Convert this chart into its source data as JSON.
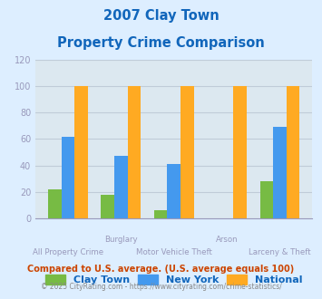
{
  "title_line1": "2007 Clay Town",
  "title_line2": "Property Crime Comparison",
  "categories": [
    "All Property Crime",
    "Burglary",
    "Motor Vehicle Theft",
    "Arson",
    "Larceny & Theft"
  ],
  "x_label_row1": [
    "",
    "Burglary",
    "",
    "Arson",
    ""
  ],
  "x_label_row2": [
    "All Property Crime",
    "",
    "Motor Vehicle Theft",
    "",
    "Larceny & Theft"
  ],
  "clay_town": [
    22,
    18,
    6,
    0,
    28
  ],
  "new_york": [
    62,
    47,
    41,
    0,
    69
  ],
  "national": [
    100,
    100,
    100,
    100,
    100
  ],
  "bar_colors": {
    "clay_town": "#77bb44",
    "new_york": "#4499ee",
    "national": "#ffaa22"
  },
  "ylim": [
    0,
    120
  ],
  "yticks": [
    0,
    20,
    40,
    60,
    80,
    100,
    120
  ],
  "legend_labels": [
    "Clay Town",
    "New York",
    "National"
  ],
  "footnote1": "Compared to U.S. average. (U.S. average equals 100)",
  "footnote2": "© 2025 CityRating.com - https://www.cityrating.com/crime-statistics/",
  "title_color": "#1166bb",
  "footnote1_color": "#cc4400",
  "footnote2_color": "#888888",
  "bg_color": "#ddeeff",
  "plot_bg": "#dce8f0",
  "tick_color": "#9999bb",
  "grid_color": "#c0ccd8"
}
